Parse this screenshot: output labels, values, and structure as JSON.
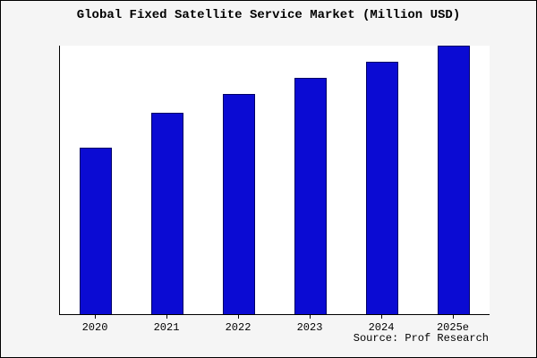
{
  "title": "Global Fixed Satellite Service Market (Million USD)",
  "source": "Source: Prof Research",
  "chart_data": {
    "type": "bar",
    "title": "Global Fixed Satellite Service Market (Million USD)",
    "categories": [
      "2020",
      "2021",
      "2022",
      "2023",
      "2024",
      "2025e"
    ],
    "values": [
      62,
      75,
      82,
      88,
      94,
      100
    ],
    "xlabel": "",
    "ylabel": "",
    "ylim": [
      0,
      100
    ],
    "grid": false,
    "legend": "none",
    "bar_color": "#0b0bd3",
    "bar_border_color": "#000066",
    "plot_background": "#ffffff",
    "page_background": "#f5f5f5",
    "axis_color": "#000000"
  }
}
